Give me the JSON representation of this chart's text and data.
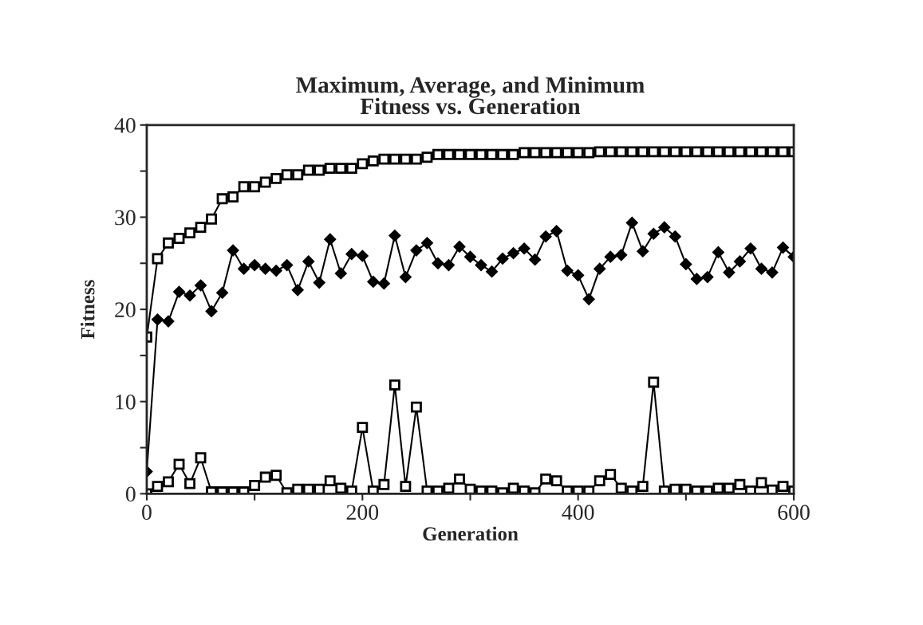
{
  "chart_data": {
    "type": "line",
    "title": "Maximum, Average, and Minimum\nFitness vs. Generation",
    "xlabel": "Generation",
    "ylabel": "Fitness",
    "x": [
      0,
      10,
      20,
      30,
      40,
      50,
      60,
      70,
      80,
      90,
      100,
      110,
      120,
      130,
      140,
      150,
      160,
      170,
      180,
      190,
      200,
      210,
      220,
      230,
      240,
      250,
      260,
      270,
      280,
      290,
      300,
      310,
      320,
      330,
      340,
      350,
      360,
      370,
      380,
      390,
      400,
      410,
      420,
      430,
      440,
      450,
      460,
      470,
      480,
      490,
      500,
      510,
      520,
      530,
      540,
      550,
      560,
      570,
      580,
      590,
      600
    ],
    "series": [
      {
        "color": "#000000",
        "marker": "square",
        "values": [
          17,
          25.5,
          27.2,
          27.7,
          28.3,
          28.9,
          29.8,
          32.0,
          32.2,
          33.3,
          33.3,
          33.8,
          34.2,
          34.6,
          34.6,
          35.1,
          35.1,
          35.3,
          35.3,
          35.3,
          35.8,
          36.1,
          36.3,
          36.3,
          36.3,
          36.3,
          36.5,
          36.8,
          36.8,
          36.8,
          36.8,
          36.8,
          36.8,
          36.8,
          36.8,
          37.0,
          37.0,
          37.0,
          37.0,
          37.0,
          37.0,
          37.0,
          37.1,
          37.1,
          37.1,
          37.1,
          37.1,
          37.1,
          37.1,
          37.1,
          37.1,
          37.1,
          37.1,
          37.1,
          37.1,
          37.1,
          37.1,
          37.1,
          37.1,
          37.1,
          37.1
        ]
      },
      {
        "color": "#000000",
        "marker": "diamond",
        "values": [
          2.4,
          18.9,
          18.7,
          21.9,
          21.5,
          22.6,
          19.8,
          21.8,
          26.4,
          24.4,
          24.8,
          24.4,
          24.2,
          24.8,
          22.1,
          25.2,
          22.9,
          27.6,
          23.9,
          26.0,
          25.8,
          23.0,
          22.8,
          28.0,
          23.5,
          26.4,
          27.2,
          25.0,
          24.8,
          26.8,
          25.7,
          24.8,
          24.1,
          25.5,
          26.1,
          26.6,
          25.4,
          27.9,
          28.5,
          24.2,
          23.7,
          21.1,
          24.4,
          25.7,
          25.9,
          29.4,
          26.3,
          28.2,
          28.9,
          27.9,
          24.9,
          23.3,
          23.5,
          26.2,
          24.0,
          25.2,
          26.6,
          24.4,
          24.0,
          26.7,
          25.7
        ]
      },
      {
        "color": "#000000",
        "marker": "square",
        "values": [
          0,
          0.8,
          1.3,
          3.2,
          1.1,
          3.9,
          0.2,
          0.2,
          0.2,
          0.2,
          0.9,
          1.8,
          2.0,
          0.1,
          0.5,
          0.5,
          0.5,
          1.4,
          0.6,
          0.3,
          7.2,
          0.3,
          1.0,
          11.8,
          0.8,
          9.4,
          0.3,
          0.3,
          0.6,
          1.6,
          0.5,
          0.3,
          0.3,
          0.1,
          0.6,
          0.3,
          0.1,
          1.6,
          1.4,
          0.3,
          0.3,
          0.3,
          1.4,
          2.1,
          0.6,
          0.3,
          0.8,
          12.1,
          0.3,
          0.5,
          0.5,
          0.3,
          0.3,
          0.6,
          0.6,
          1.0,
          0.3,
          1.2,
          0.4,
          0.8,
          0.3
        ]
      }
    ],
    "xlim": [
      0,
      600
    ],
    "ylim": [
      0,
      40
    ],
    "xticks": [
      0,
      {
        "value": 100,
        "label": null
      },
      200,
      {
        "value": 300,
        "label": null
      },
      400,
      {
        "value": 500,
        "label": null
      },
      600
    ],
    "yticks": [
      0,
      {
        "value": 5,
        "label": null
      },
      10,
      {
        "value": 15,
        "label": null
      },
      20,
      {
        "value": 25,
        "label": null
      },
      30,
      {
        "value": 35,
        "label": null
      },
      40
    ],
    "grid": false,
    "legend": false
  }
}
